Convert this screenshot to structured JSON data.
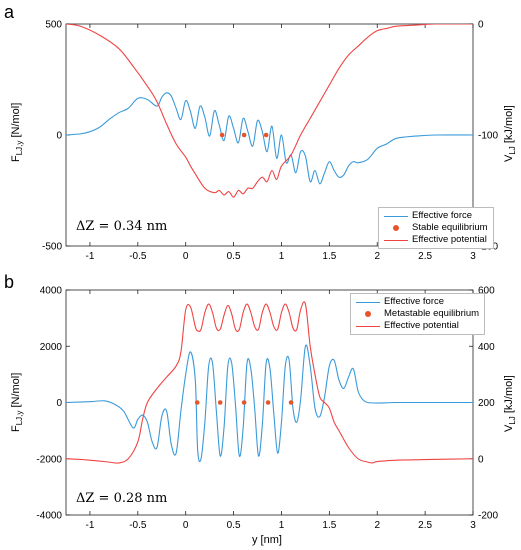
{
  "chart_data": [
    {
      "panel": "a",
      "type": "line",
      "xlabel": "",
      "ylabel_left": "F",
      "ylabel_left_sub": "LJ,y",
      "ylabel_left_unit": " [N/mol]",
      "ylabel_right": "V",
      "ylabel_right_sub": "LJ",
      "ylabel_right_unit": " [kJ/mol]",
      "xlim": [
        -1.25,
        3
      ],
      "ylim_left": [
        -500,
        500
      ],
      "ylim_right": [
        -200,
        0
      ],
      "xticks": [
        -1,
        -0.5,
        0,
        0.5,
        1,
        1.5,
        2,
        2.5,
        3
      ],
      "xtick_labels": [
        "-1",
        "-0.5",
        "0",
        "0.5",
        "1",
        "1.5",
        "2",
        "2.5",
        "3"
      ],
      "yticks_left": [
        -500,
        0,
        500
      ],
      "yticks_right": [
        -200,
        -100,
        0
      ],
      "annotation": "ΔZ = 0.34 nm",
      "legend": {
        "placement": "bottom-right",
        "entries": [
          "Effective force",
          "Stable equilibrium",
          "Effective potential"
        ]
      },
      "series": [
        {
          "name": "Effective force",
          "axis": "left",
          "color": "#3a9ad9",
          "x": [
            -1.25,
            -1.1,
            -1.0,
            -0.9,
            -0.8,
            -0.7,
            -0.6,
            -0.5,
            -0.4,
            -0.3,
            -0.25,
            -0.2,
            -0.15,
            -0.1,
            -0.05,
            0.0,
            0.05,
            0.1,
            0.15,
            0.2,
            0.25,
            0.3,
            0.35,
            0.4,
            0.45,
            0.5,
            0.55,
            0.6,
            0.65,
            0.7,
            0.75,
            0.8,
            0.85,
            0.9,
            0.95,
            1.0,
            1.05,
            1.1,
            1.15,
            1.2,
            1.25,
            1.3,
            1.35,
            1.4,
            1.45,
            1.5,
            1.55,
            1.6,
            1.65,
            1.7,
            1.75,
            1.8,
            1.9,
            2.0,
            2.1,
            2.2,
            2.4,
            2.6,
            3.0
          ],
          "y": [
            0,
            5,
            15,
            35,
            70,
            100,
            120,
            165,
            160,
            130,
            170,
            190,
            175,
            120,
            70,
            155,
            105,
            30,
            130,
            80,
            -5,
            110,
            45,
            -25,
            85,
            30,
            -35,
            75,
            15,
            -50,
            65,
            15,
            -75,
            40,
            -105,
            0,
            -125,
            -90,
            -170,
            -75,
            -95,
            -210,
            -160,
            -220,
            -170,
            -120,
            -160,
            -190,
            -180,
            -140,
            -120,
            -125,
            -110,
            -60,
            -40,
            -15,
            -5,
            0,
            0
          ]
        },
        {
          "name": "Stable equilibrium",
          "type": "scatter",
          "axis": "left",
          "color": "#e8542a",
          "x": [
            0.38,
            0.61,
            0.84
          ],
          "y": [
            0,
            0,
            0
          ]
        },
        {
          "name": "Effective potential",
          "axis": "right",
          "color": "#ef4444",
          "x": [
            -1.25,
            -1.1,
            -0.9,
            -0.7,
            -0.55,
            -0.4,
            -0.3,
            -0.2,
            -0.1,
            0.0,
            0.05,
            0.1,
            0.2,
            0.3,
            0.35,
            0.4,
            0.45,
            0.5,
            0.55,
            0.6,
            0.65,
            0.7,
            0.75,
            0.8,
            0.85,
            0.9,
            0.95,
            1.0,
            1.1,
            1.2,
            1.3,
            1.4,
            1.5,
            1.6,
            1.7,
            1.8,
            1.9,
            2.0,
            2.1,
            2.2,
            2.4,
            2.6,
            3.0
          ],
          "y": [
            0,
            -2,
            -10,
            -22,
            -38,
            -56,
            -70,
            -90,
            -108,
            -120,
            -128,
            -135,
            -148,
            -152,
            -150,
            -154,
            -151,
            -156,
            -150,
            -153,
            -148,
            -148,
            -142,
            -138,
            -142,
            -132,
            -140,
            -128,
            -118,
            -100,
            -85,
            -70,
            -55,
            -40,
            -28,
            -20,
            -12,
            -6,
            -4,
            -2,
            -1,
            0,
            0
          ]
        }
      ]
    },
    {
      "panel": "b",
      "type": "line",
      "xlabel": "y [nm]",
      "ylabel_left": "F",
      "ylabel_left_sub": "LJ,y",
      "ylabel_left_unit": " [N/mol]",
      "ylabel_right": "V",
      "ylabel_right_sub": "LJ",
      "ylabel_right_unit": " [kJ/mol]",
      "xlim": [
        -1.25,
        3
      ],
      "ylim_left": [
        -4000,
        4000
      ],
      "ylim_right": [
        -200,
        600
      ],
      "xticks": [
        -1,
        -0.5,
        0,
        0.5,
        1,
        1.5,
        2,
        2.5,
        3
      ],
      "xtick_labels": [
        "-1",
        "-0.5",
        "0",
        "0.5",
        "1",
        "1.5",
        "2",
        "2.5",
        "3"
      ],
      "yticks_left": [
        -4000,
        -2000,
        0,
        2000,
        4000
      ],
      "yticks_right": [
        -200,
        0,
        200,
        400,
        600
      ],
      "annotation": "ΔZ = 0.28 nm",
      "legend": {
        "placement": "top-right",
        "entries": [
          "Effective force",
          "Metastable equilibrium",
          "Effective potential"
        ]
      },
      "series": [
        {
          "name": "Effective force",
          "axis": "left",
          "color": "#3a9ad9",
          "x": [
            -1.25,
            -1.0,
            -0.85,
            -0.75,
            -0.65,
            -0.55,
            -0.5,
            -0.45,
            -0.4,
            -0.35,
            -0.3,
            -0.25,
            -0.2,
            -0.15,
            -0.1,
            -0.05,
            0.0,
            0.05,
            0.1,
            0.125,
            0.16,
            0.2,
            0.24,
            0.28,
            0.32,
            0.36,
            0.4,
            0.44,
            0.48,
            0.52,
            0.56,
            0.6,
            0.64,
            0.68,
            0.72,
            0.76,
            0.8,
            0.84,
            0.88,
            0.92,
            0.96,
            1.0,
            1.04,
            1.08,
            1.12,
            1.16,
            1.2,
            1.25,
            1.3,
            1.35,
            1.4,
            1.45,
            1.5,
            1.55,
            1.6,
            1.65,
            1.7,
            1.75,
            1.8,
            1.85,
            1.9,
            2.0,
            2.2,
            2.5,
            3.0
          ],
          "y": [
            0,
            30,
            60,
            -50,
            -300,
            -900,
            -600,
            -450,
            -700,
            -1400,
            -1600,
            -500,
            -300,
            -1500,
            -1800,
            -300,
            1000,
            1800,
            800,
            -1700,
            -2000,
            -700,
            1300,
            1400,
            -300,
            -1900,
            -900,
            1300,
            1400,
            -100,
            -1900,
            -900,
            1400,
            1200,
            -200,
            -1900,
            -800,
            1400,
            1200,
            -400,
            -1800,
            -700,
            1300,
            1500,
            -200,
            -700,
            100,
            2000,
            1300,
            -200,
            -500,
            200,
            1300,
            1500,
            800,
            500,
            900,
            1200,
            400,
            100,
            0,
            -20,
            0,
            0,
            0
          ]
        },
        {
          "name": "Metastable equilibrium",
          "type": "scatter",
          "axis": "left",
          "color": "#e8542a",
          "x": [
            0.12,
            0.36,
            0.61,
            0.86,
            1.1
          ],
          "y": [
            0,
            0,
            0,
            0,
            0
          ]
        },
        {
          "name": "Effective potential",
          "axis": "right",
          "color": "#ef4444",
          "x": [
            -1.25,
            -1.0,
            -0.8,
            -0.7,
            -0.6,
            -0.5,
            -0.45,
            -0.4,
            -0.3,
            -0.2,
            -0.1,
            -0.05,
            0.0,
            0.05,
            0.1,
            0.125,
            0.16,
            0.2,
            0.24,
            0.28,
            0.32,
            0.36,
            0.4,
            0.44,
            0.48,
            0.52,
            0.56,
            0.6,
            0.64,
            0.68,
            0.72,
            0.76,
            0.8,
            0.84,
            0.88,
            0.92,
            0.96,
            1.0,
            1.04,
            1.08,
            1.12,
            1.16,
            1.2,
            1.25,
            1.3,
            1.35,
            1.4,
            1.45,
            1.5,
            1.55,
            1.6,
            1.7,
            1.8,
            1.9,
            1.95,
            2.0,
            2.2,
            2.5,
            3.0
          ],
          "y": [
            0,
            -5,
            -12,
            -15,
            0,
            60,
            140,
            200,
            250,
            290,
            330,
            380,
            530,
            540,
            470,
            455,
            460,
            520,
            550,
            520,
            465,
            460,
            510,
            545,
            515,
            460,
            460,
            520,
            550,
            520,
            470,
            460,
            520,
            550,
            520,
            470,
            460,
            520,
            550,
            520,
            465,
            460,
            530,
            550,
            400,
            300,
            220,
            200,
            180,
            130,
            100,
            40,
            0,
            -12,
            -15,
            -10,
            -5,
            -3,
            0
          ]
        }
      ]
    }
  ]
}
